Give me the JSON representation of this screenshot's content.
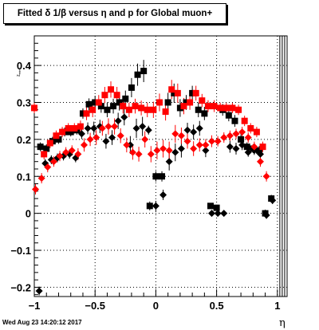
{
  "title": "Fitted δ 1/β versus η and p for Global muon+",
  "timestamp": "Wed Aug 23 14:20:12 2017",
  "chart_data": {
    "type": "scatter",
    "title": "Fitted δ 1/β versus η and p for Global muon+",
    "xlabel": "η",
    "ylabel": "Z_{etainv}",
    "xlim": [
      -1.0,
      1.08
    ],
    "ylim": [
      -0.225,
      0.48
    ],
    "x_ticks": [
      -1,
      -0.5,
      0,
      0.5,
      1
    ],
    "x_tick_labels": [
      "−1",
      "−0.5",
      "0",
      "0.5",
      "1"
    ],
    "y_ticks": [
      -0.2,
      -0.1,
      0,
      0.1,
      0.2,
      0.3,
      0.4
    ],
    "y_tick_labels": [
      "−0.2",
      "−0.1",
      "0",
      "0.1",
      "0.2",
      "0.3",
      "0.4"
    ],
    "grid": true,
    "series": [
      {
        "marker": "square",
        "color": "#000000",
        "x": [
          -0.95,
          -0.9,
          -0.85,
          -0.8,
          -0.75,
          -0.7,
          -0.65,
          -0.6,
          -0.55,
          -0.5,
          -0.45,
          -0.4,
          -0.35,
          -0.3,
          -0.25,
          -0.2,
          -0.15,
          -0.1,
          -0.05,
          0.0,
          0.05,
          0.1,
          0.15,
          0.2,
          0.25,
          0.3,
          0.35,
          0.4,
          0.45,
          0.5,
          0.55,
          0.6,
          0.65,
          0.7,
          0.75,
          0.8,
          0.85,
          0.9,
          0.95
        ],
        "y": [
          0.18,
          0.175,
          0.195,
          0.2,
          0.22,
          0.22,
          0.225,
          0.27,
          0.295,
          0.3,
          0.29,
          0.28,
          0.29,
          0.3,
          0.31,
          0.34,
          0.375,
          0.385,
          0.02,
          0.1,
          0.1,
          0.3,
          0.325,
          0.285,
          0.3,
          0.325,
          0.28,
          0.27,
          0.02,
          0.015,
          0.28,
          0.265,
          0.25,
          0.2,
          0.18,
          0.175,
          0.17,
          0.0,
          0.04
        ],
        "yerr": [
          0.012,
          0.012,
          0.012,
          0.012,
          0.012,
          0.012,
          0.012,
          0.014,
          0.016,
          0.018,
          0.018,
          0.02,
          0.02,
          0.022,
          0.022,
          0.026,
          0.03,
          0.03,
          0.012,
          0.014,
          0.014,
          0.026,
          0.026,
          0.024,
          0.02,
          0.02,
          0.02,
          0.018,
          0.008,
          0.008,
          0.016,
          0.016,
          0.016,
          0.014,
          0.012,
          0.012,
          0.012,
          0.01,
          0.01
        ]
      },
      {
        "marker": "diamond",
        "color": "#000000",
        "x": [
          -0.96,
          -0.91,
          -0.86,
          -0.81,
          -0.76,
          -0.71,
          -0.66,
          -0.61,
          -0.56,
          -0.51,
          -0.46,
          -0.41,
          -0.36,
          -0.31,
          -0.26,
          -0.21,
          -0.16,
          -0.11,
          -0.06,
          0.0,
          0.06,
          0.11,
          0.16,
          0.21,
          0.26,
          0.31,
          0.36,
          0.41,
          0.46,
          0.51,
          0.56,
          0.61,
          0.66,
          0.71,
          0.76,
          0.81,
          0.86,
          0.91,
          0.96
        ],
        "y": [
          -0.21,
          0.135,
          0.145,
          0.15,
          0.155,
          0.16,
          0.15,
          0.215,
          0.23,
          0.23,
          0.235,
          0.195,
          0.205,
          0.25,
          0.26,
          0.185,
          0.23,
          0.235,
          0.225,
          0.02,
          0.05,
          0.14,
          0.165,
          0.175,
          0.225,
          0.22,
          0.23,
          0.17,
          0.0,
          0.0,
          0.0,
          0.18,
          0.175,
          0.185,
          0.165,
          0.17,
          0.16,
          -0.005,
          0.035
        ],
        "yerr": [
          0.012,
          0.012,
          0.012,
          0.012,
          0.012,
          0.012,
          0.012,
          0.014,
          0.016,
          0.018,
          0.018,
          0.02,
          0.02,
          0.022,
          0.022,
          0.024,
          0.026,
          0.026,
          0.012,
          0.014,
          0.014,
          0.024,
          0.024,
          0.024,
          0.02,
          0.02,
          0.02,
          0.018,
          0.008,
          0.008,
          0.008,
          0.016,
          0.016,
          0.014,
          0.012,
          0.012,
          0.012,
          0.01,
          0.01
        ]
      },
      {
        "marker": "square",
        "color": "#ff0000",
        "x": [
          -1.0,
          -0.92,
          -0.87,
          -0.82,
          -0.77,
          -0.72,
          -0.67,
          -0.62,
          -0.57,
          -0.52,
          -0.47,
          -0.42,
          -0.37,
          -0.32,
          -0.27,
          -0.22,
          -0.17,
          -0.12,
          -0.07,
          -0.02,
          0.03,
          0.08,
          0.13,
          0.18,
          0.23,
          0.28,
          0.33,
          0.38,
          0.43,
          0.48,
          0.53,
          0.58,
          0.63,
          0.68,
          0.73,
          0.78,
          0.83,
          0.88
        ],
        "y": [
          0.285,
          0.16,
          0.19,
          0.21,
          0.22,
          0.23,
          0.23,
          0.235,
          0.27,
          0.28,
          0.3,
          0.32,
          0.335,
          0.32,
          0.29,
          0.28,
          0.29,
          0.285,
          0.28,
          0.28,
          0.3,
          0.275,
          0.335,
          0.325,
          0.29,
          0.3,
          0.325,
          0.305,
          0.29,
          0.29,
          0.285,
          0.285,
          0.285,
          0.28,
          0.25,
          0.23,
          0.22,
          0.18
        ],
        "yerr": [
          0.014,
          0.014,
          0.014,
          0.014,
          0.014,
          0.014,
          0.014,
          0.016,
          0.018,
          0.02,
          0.02,
          0.022,
          0.022,
          0.022,
          0.02,
          0.02,
          0.02,
          0.02,
          0.02,
          0.022,
          0.024,
          0.024,
          0.026,
          0.026,
          0.022,
          0.02,
          0.02,
          0.018,
          0.016,
          0.016,
          0.014,
          0.014,
          0.014,
          0.014,
          0.014,
          0.014,
          0.014,
          0.014
        ]
      },
      {
        "marker": "diamond",
        "color": "#ff0000",
        "x": [
          -0.99,
          -0.94,
          -0.89,
          -0.84,
          -0.79,
          -0.74,
          -0.69,
          -0.64,
          -0.59,
          -0.54,
          -0.49,
          -0.44,
          -0.39,
          -0.34,
          -0.29,
          -0.24,
          -0.19,
          -0.14,
          -0.09,
          -0.04,
          0.01,
          0.06,
          0.11,
          0.16,
          0.21,
          0.26,
          0.31,
          0.36,
          0.41,
          0.46,
          0.51,
          0.56,
          0.61,
          0.66,
          0.71,
          0.76,
          0.81,
          0.86,
          0.91
        ],
        "y": [
          0.065,
          0.095,
          0.125,
          0.14,
          0.155,
          0.165,
          0.17,
          0.16,
          0.185,
          0.2,
          0.205,
          0.23,
          0.235,
          0.235,
          0.21,
          0.185,
          0.165,
          0.16,
          0.2,
          0.16,
          0.17,
          0.175,
          0.17,
          0.215,
          0.21,
          0.195,
          0.175,
          0.185,
          0.185,
          0.195,
          0.195,
          0.205,
          0.21,
          0.215,
          0.22,
          0.205,
          0.18,
          0.14,
          0.1
        ],
        "yerr": [
          0.014,
          0.014,
          0.014,
          0.014,
          0.014,
          0.014,
          0.014,
          0.016,
          0.018,
          0.018,
          0.02,
          0.02,
          0.022,
          0.022,
          0.02,
          0.02,
          0.02,
          0.02,
          0.022,
          0.022,
          0.024,
          0.024,
          0.024,
          0.024,
          0.022,
          0.02,
          0.02,
          0.018,
          0.016,
          0.016,
          0.014,
          0.014,
          0.014,
          0.014,
          0.014,
          0.014,
          0.014,
          0.014,
          0.014
        ]
      }
    ],
    "vertical_lines": [
      1.02,
      1.04,
      1.06,
      1.08
    ]
  }
}
